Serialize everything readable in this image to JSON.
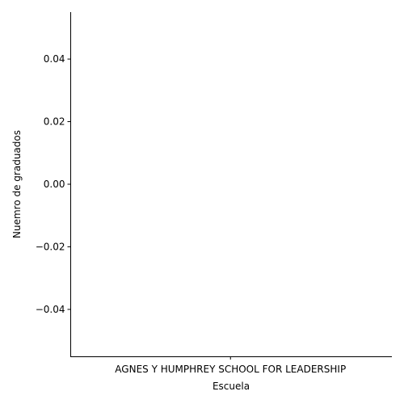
{
  "chart_data": {
    "type": "bar",
    "title": "",
    "xlabel": "Escuela",
    "ylabel": "Nuemro de graduados",
    "categories": [
      "AGNES Y HUMPHREY SCHOOL FOR LEADERSHIP"
    ],
    "values": [
      0
    ],
    "ylim": [
      -0.055,
      0.055
    ],
    "yticks": [
      -0.04,
      -0.02,
      0.0,
      0.02,
      0.04
    ],
    "ytick_labels": [
      "−0.04",
      "−0.02",
      "0.00",
      "0.02",
      "0.04"
    ],
    "grid": false,
    "legend": "none",
    "colors": {
      "axis": "#000000",
      "bar_edge": "#3f3f3f",
      "background": "#ffffff"
    }
  }
}
